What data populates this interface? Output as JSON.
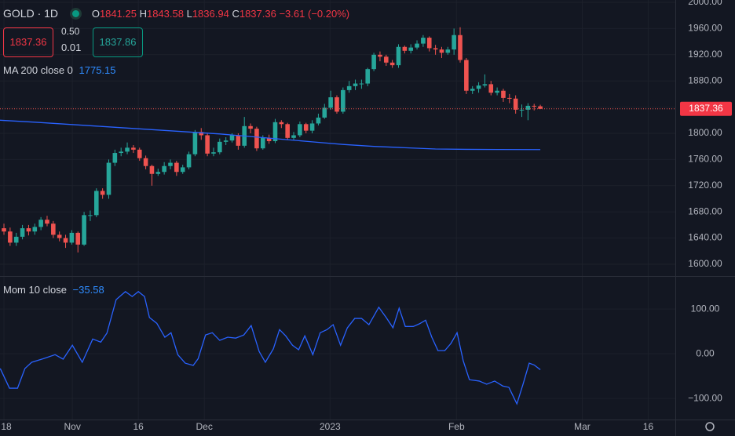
{
  "chart_data": {
    "type": "candlestick",
    "symbol": "GOLD",
    "interval": "1D",
    "header": {
      "labels": [
        "O",
        "H",
        "L",
        "C"
      ],
      "change": {
        "value": -3.61,
        "label": "−3.61"
      },
      "change_pct": {
        "value": -0.2,
        "label": "(−0.20%)"
      }
    },
    "trade": {
      "sell": 1837.36,
      "spread": {
        "value": 0.5,
        "label": "0.50"
      },
      "step": 0.01,
      "buy": 1837.86
    },
    "up_color": "#26a69a",
    "down_color": "#ef5350",
    "open": [
      1655,
      1650,
      1633,
      1642,
      1655,
      1650,
      1657,
      1668,
      1662,
      1645,
      1640,
      1633,
      1648,
      1630,
      1675,
      1675,
      1712,
      1706,
      1755,
      1770,
      1772,
      1778,
      1775,
      1762,
      1750,
      1738,
      1741,
      1750,
      1755,
      1741,
      1748,
      1768,
      1802,
      1797,
      1769,
      1771,
      1787,
      1789,
      1797,
      1781,
      1811,
      1807,
      1777,
      1793,
      1788,
      1817,
      1814,
      1793,
      1797,
      1814,
      1804,
      1815,
      1824,
      1839,
      1855,
      1833,
      1866,
      1872,
      1876,
      1876,
      1898,
      1920,
      1917,
      1908,
      1904,
      1932,
      1926,
      1931,
      1937,
      1946,
      1930,
      1928,
      1923,
      1928,
      1950,
      1912,
      1865,
      1868,
      1873,
      1875,
      1862,
      1865,
      1854,
      1853,
      1836,
      1836,
      1842,
      1841.25
    ],
    "high": [
      1662,
      1656,
      1648,
      1660,
      1660,
      1662,
      1672,
      1674,
      1666,
      1650,
      1645,
      1652,
      1650,
      1680,
      1682,
      1716,
      1716,
      1760,
      1775,
      1778,
      1786,
      1782,
      1778,
      1766,
      1752,
      1746,
      1756,
      1760,
      1758,
      1752,
      1772,
      1805,
      1808,
      1800,
      1778,
      1792,
      1794,
      1800,
      1800,
      1825,
      1815,
      1810,
      1797,
      1798,
      1822,
      1820,
      1816,
      1802,
      1818,
      1816,
      1820,
      1830,
      1845,
      1865,
      1858,
      1870,
      1880,
      1882,
      1882,
      1900,
      1923,
      1925,
      1920,
      1912,
      1936,
      1934,
      1936,
      1942,
      1950,
      1948,
      1935,
      1932,
      1932,
      1960,
      1962,
      1915,
      1872,
      1878,
      1890,
      1880,
      1870,
      1868,
      1860,
      1858,
      1844,
      1846,
      1845,
      1843.58
    ],
    "low": [
      1645,
      1628,
      1628,
      1638,
      1644,
      1645,
      1652,
      1658,
      1640,
      1635,
      1625,
      1630,
      1618,
      1628,
      1666,
      1672,
      1700,
      1700,
      1750,
      1765,
      1768,
      1770,
      1758,
      1745,
      1720,
      1735,
      1737,
      1745,
      1735,
      1738,
      1745,
      1765,
      1790,
      1765,
      1765,
      1768,
      1782,
      1786,
      1775,
      1778,
      1800,
      1773,
      1775,
      1784,
      1785,
      1808,
      1790,
      1790,
      1794,
      1800,
      1800,
      1812,
      1822,
      1836,
      1830,
      1830,
      1862,
      1866,
      1868,
      1872,
      1895,
      1910,
      1903,
      1900,
      1900,
      1922,
      1922,
      1928,
      1932,
      1925,
      1920,
      1915,
      1920,
      1920,
      1908,
      1860,
      1860,
      1862,
      1870,
      1858,
      1858,
      1848,
      1846,
      1830,
      1825,
      1820,
      1835,
      1836.94
    ],
    "close": [
      1650,
      1633,
      1642,
      1655,
      1650,
      1657,
      1668,
      1662,
      1645,
      1640,
      1633,
      1648,
      1630,
      1675,
      1675,
      1712,
      1706,
      1755,
      1770,
      1772,
      1778,
      1775,
      1762,
      1750,
      1738,
      1741,
      1750,
      1755,
      1741,
      1748,
      1768,
      1802,
      1797,
      1769,
      1771,
      1787,
      1789,
      1797,
      1781,
      1811,
      1807,
      1777,
      1793,
      1788,
      1817,
      1814,
      1793,
      1797,
      1814,
      1804,
      1815,
      1824,
      1839,
      1855,
      1833,
      1866,
      1872,
      1876,
      1876,
      1898,
      1920,
      1917,
      1908,
      1904,
      1932,
      1926,
      1931,
      1937,
      1946,
      1930,
      1928,
      1923,
      1928,
      1950,
      1912,
      1865,
      1868,
      1873,
      1875,
      1862,
      1865,
      1854,
      1853,
      1836,
      1836,
      1842,
      1841,
      1837.36
    ],
    "xlim": [
      -0.64,
      108.9
    ],
    "xticks": [
      {
        "value": 0,
        "label": "18"
      },
      {
        "value": 11.1,
        "label": "Nov"
      },
      {
        "value": 21.8,
        "label": "16"
      },
      {
        "value": 32.5,
        "label": "Dec"
      },
      {
        "value": 52.9,
        "label": "2023"
      },
      {
        "value": 73.4,
        "label": "Feb"
      },
      {
        "value": 93.8,
        "label": "Mar"
      },
      {
        "value": 104.5,
        "label": "16"
      }
    ],
    "ylim": [
      1582,
      2003.6
    ],
    "yticks": [
      {
        "value": 1600,
        "label": "1600.00"
      },
      {
        "value": 1640,
        "label": "1640.00"
      },
      {
        "value": 1680,
        "label": "1680.00"
      },
      {
        "value": 1720,
        "label": "1720.00"
      },
      {
        "value": 1760,
        "label": "1760.00"
      },
      {
        "value": 1800,
        "label": "1800.00"
      },
      {
        "value": 1840,
        "label": "1840.00"
      },
      {
        "value": 1880,
        "label": "1880.00"
      },
      {
        "value": 1920,
        "label": "1920.00"
      },
      {
        "value": 1960,
        "label": "1960.00"
      },
      {
        "value": 2000,
        "label": "2000.00"
      }
    ],
    "grid": true,
    "ma": {
      "name": "MA 200 close 0",
      "color": "#2962ff",
      "x": [
        -0.64,
        5,
        10,
        15,
        20,
        25,
        30,
        35,
        40,
        45,
        50,
        55,
        60,
        65,
        70,
        75,
        80,
        87
      ],
      "values": [
        1820,
        1817,
        1814,
        1811,
        1808,
        1805,
        1802,
        1799,
        1795,
        1791,
        1787,
        1783,
        1780,
        1778,
        1776,
        1775.5,
        1775.3,
        1775.15
      ]
    },
    "momentum": {
      "type": "line",
      "name": "Mom 10 close",
      "color": "#2962ff",
      "value_label": "−35.58",
      "x": [
        -0.6,
        0.9,
        2.2,
        3.4,
        4.5,
        6.4,
        8.3,
        9.6,
        11.1,
        12.7,
        14.4,
        15.7,
        16.7,
        18.2,
        19.7,
        20.8,
        21.8,
        22.8,
        23.6,
        24.8,
        26.1,
        27.1,
        28.2,
        29.4,
        30.7,
        31.5,
        32.7,
        33.8,
        35,
        36.3,
        37.6,
        38.9,
        40.1,
        41.4,
        42.4,
        43.7,
        44.7,
        45.7,
        46.8,
        47.8,
        48.8,
        50.1,
        51.3,
        52.4,
        53.4,
        54.6,
        55.7,
        56.9,
        58,
        59.2,
        60.8,
        62,
        63.1,
        64.1,
        65.1,
        66.4,
        67.4,
        68.4,
        69.4,
        70.4,
        71.5,
        72.5,
        73.5,
        74.5,
        75.5,
        77.1,
        78.3,
        79.6,
        80.9,
        81.9,
        83.2,
        84.2,
        85.2,
        86,
        87
      ],
      "values": [
        -33,
        -77,
        -77,
        -33,
        -19,
        -11,
        -2,
        -12,
        19,
        -19,
        33,
        26,
        46,
        121,
        139,
        128,
        139,
        128,
        81,
        68,
        37,
        47,
        -2,
        -21,
        -26,
        -11,
        42,
        47,
        30,
        37,
        35,
        42,
        63,
        5,
        -19,
        11,
        54,
        40,
        19,
        9,
        40,
        -2,
        47,
        54,
        65,
        19,
        58,
        79,
        79,
        65,
        104,
        81,
        58,
        102,
        61,
        61,
        67,
        75,
        37,
        7,
        7,
        23,
        47,
        -16,
        -58,
        -61,
        -68,
        -61,
        -72,
        -75,
        -112,
        -68,
        -21,
        -25,
        -35.58
      ],
      "ylim": [
        -147,
        172
      ],
      "yticks": [
        {
          "value": -100,
          "label": "−100.00"
        },
        {
          "value": 0,
          "label": "0.00"
        },
        {
          "value": 100,
          "label": "100.00"
        }
      ]
    }
  }
}
